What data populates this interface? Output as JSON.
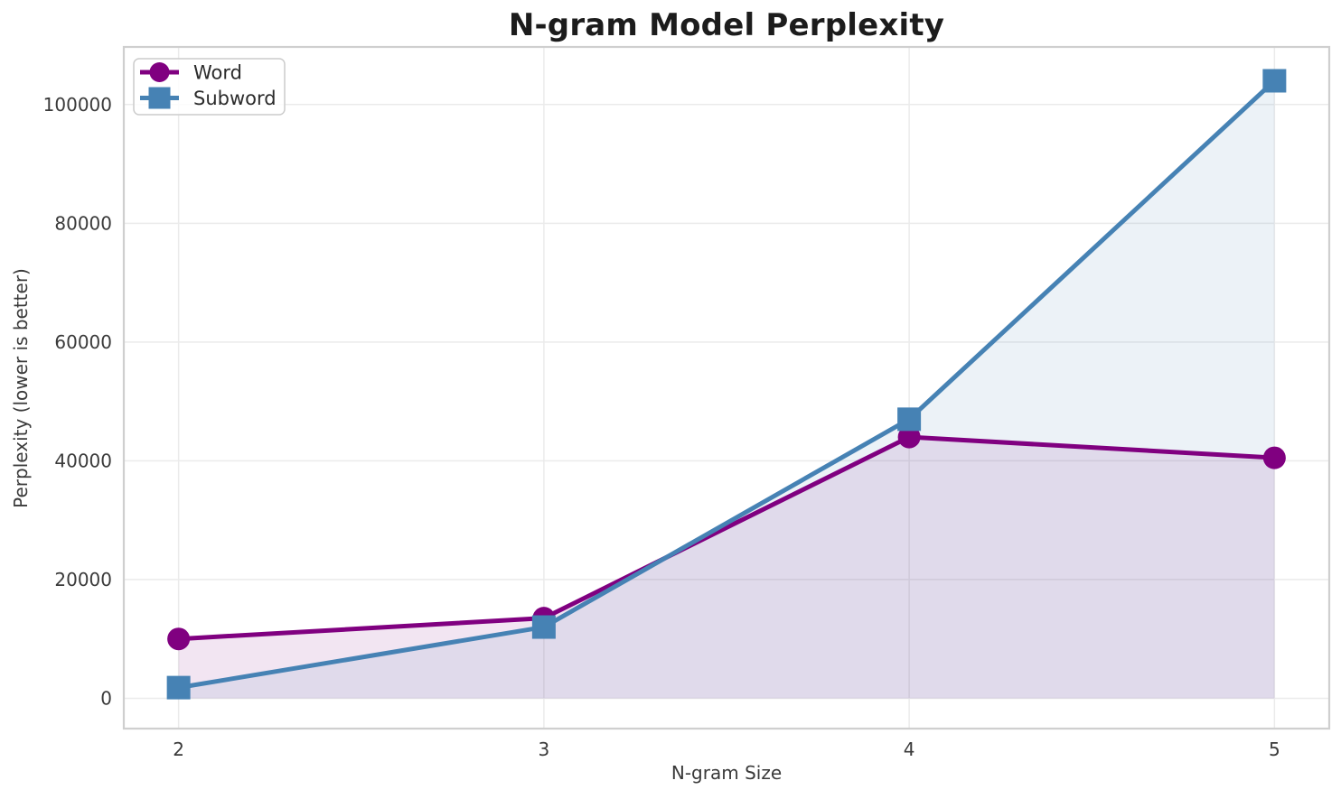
{
  "chart_data": {
    "type": "line",
    "title": "N-gram Model Perplexity",
    "xlabel": "N-gram Size",
    "ylabel": "Perplexity (lower is better)",
    "x": [
      2,
      3,
      4,
      5
    ],
    "series": [
      {
        "name": "Word",
        "color": "#800080",
        "marker": "circle",
        "values": [
          10000,
          13500,
          44000,
          40500
        ]
      },
      {
        "name": "Subword",
        "color": "#4682B4",
        "marker": "square",
        "values": [
          1800,
          12000,
          47000,
          104000
        ]
      }
    ],
    "area_fill": true,
    "fill_alpha": 0.1,
    "fill_baseline": 0,
    "xticks": [
      2,
      3,
      4,
      5
    ],
    "yticks": [
      0,
      20000,
      40000,
      60000,
      80000,
      100000
    ],
    "xlim": [
      1.85,
      5.15
    ],
    "ylim": [
      -5100,
      109700
    ],
    "grid": true,
    "legend_position": "upper-left"
  },
  "style": {
    "background": "#ffffff",
    "grid_color": "#ebebeb",
    "spine_color": "#cfcfcf",
    "tick_text_color": "#3a3a3a",
    "title_color": "#1c1c1c",
    "legend_border_color": "#cccccc",
    "legend_bg": "rgba(255,255,255,0.85)",
    "legend_text_color": "#2b2b2b"
  }
}
